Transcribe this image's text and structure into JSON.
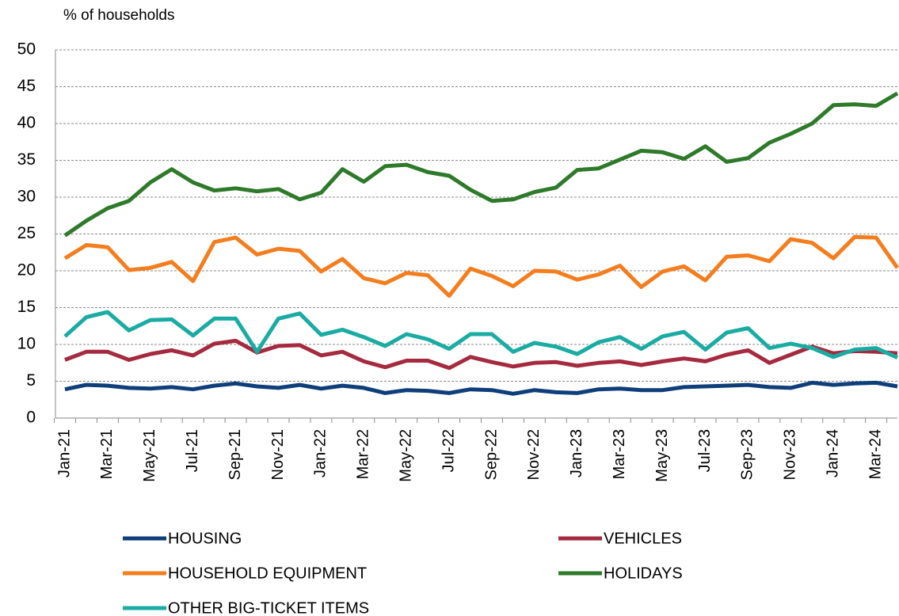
{
  "chart_data": {
    "type": "line",
    "y_label": "% of households",
    "categories": [
      "Jan-21",
      null,
      "Mar-21",
      null,
      "May-21",
      null,
      "Jul-21",
      null,
      "Sep-21",
      null,
      "Nov-21",
      null,
      "Jan-22",
      null,
      "Mar-22",
      null,
      "May-22",
      null,
      "Jul-22",
      null,
      "Sep-22",
      null,
      "Nov-22",
      null,
      "Jan-23",
      null,
      "Mar-23",
      null,
      "May-23",
      null,
      "Jul-23",
      null,
      "Sep-23",
      null,
      "Nov-23",
      null,
      "Jan-24",
      null,
      "Mar-24",
      null
    ],
    "series": [
      {
        "name": "HOUSING",
        "color": "#0e3f7a",
        "values": [
          3.9,
          4.5,
          4.4,
          4.1,
          4.0,
          4.2,
          3.9,
          4.4,
          4.7,
          4.3,
          4.1,
          4.5,
          4.0,
          4.4,
          4.1,
          3.4,
          3.8,
          3.7,
          3.4,
          3.9,
          3.8,
          3.3,
          3.8,
          3.5,
          3.4,
          3.9,
          4.0,
          3.8,
          3.8,
          4.2,
          4.3,
          4.4,
          4.5,
          4.2,
          4.1,
          4.8,
          4.5,
          4.7,
          4.8,
          4.3
        ]
      },
      {
        "name": "VEHICLES",
        "color": "#a52a3f",
        "values": [
          7.9,
          9.0,
          9.0,
          7.9,
          8.7,
          9.2,
          8.5,
          10.1,
          10.5,
          8.9,
          9.8,
          9.9,
          8.5,
          9.0,
          7.7,
          6.9,
          7.8,
          7.8,
          6.8,
          8.3,
          7.6,
          7.0,
          7.5,
          7.6,
          7.1,
          7.5,
          7.7,
          7.2,
          7.7,
          8.1,
          7.7,
          8.6,
          9.2,
          7.5,
          8.6,
          9.7,
          8.8,
          9.1,
          9.0,
          8.8
        ]
      },
      {
        "name": "HOUSEHOLD EQUIPMENT",
        "color": "#f47d1e",
        "values": [
          21.7,
          23.5,
          23.2,
          20.1,
          20.4,
          21.2,
          18.6,
          23.9,
          24.5,
          22.2,
          23.0,
          22.7,
          19.9,
          21.6,
          19.0,
          18.3,
          19.7,
          19.4,
          16.6,
          20.3,
          19.3,
          17.9,
          20.0,
          19.9,
          18.8,
          19.5,
          20.7,
          17.8,
          19.9,
          20.6,
          18.7,
          21.9,
          22.1,
          21.3,
          24.3,
          23.8,
          21.7,
          24.6,
          24.5,
          20.4
        ]
      },
      {
        "name": "HOLIDAYS",
        "color": "#2e7a2a",
        "values": [
          24.8,
          26.8,
          28.5,
          29.5,
          32.0,
          33.8,
          32.0,
          30.9,
          31.2,
          30.8,
          31.1,
          29.7,
          30.6,
          33.8,
          32.1,
          34.2,
          34.4,
          33.4,
          32.9,
          31.0,
          29.5,
          29.7,
          30.7,
          31.3,
          33.7,
          33.9,
          35.1,
          36.3,
          36.1,
          35.2,
          36.9,
          34.8,
          35.3,
          37.4,
          38.6,
          40.0,
          42.5,
          42.6,
          42.4,
          44.1
        ]
      },
      {
        "name": "OTHER BIG-TICKET ITEMS",
        "color": "#1aaba3",
        "values": [
          11.1,
          13.7,
          14.4,
          11.9,
          13.3,
          13.4,
          11.2,
          13.5,
          13.5,
          9.0,
          13.5,
          14.2,
          11.3,
          12.0,
          11.0,
          9.8,
          11.4,
          10.7,
          9.4,
          11.4,
          11.4,
          9.0,
          10.2,
          9.7,
          8.7,
          10.3,
          11.0,
          9.4,
          11.1,
          11.7,
          9.3,
          11.6,
          12.2,
          9.5,
          10.1,
          9.5,
          8.3,
          9.3,
          9.5,
          8.2
        ]
      }
    ],
    "ylim": [
      0,
      50
    ],
    "yticks": [
      0,
      5,
      10,
      15,
      20,
      25,
      30,
      35,
      40,
      45,
      50
    ],
    "grid": true
  }
}
